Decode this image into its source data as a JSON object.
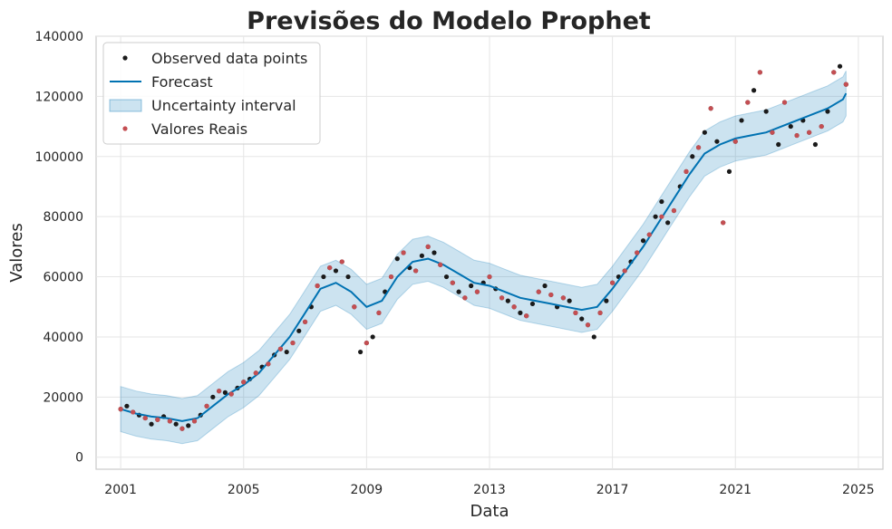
{
  "chart_data": {
    "type": "line",
    "title": "Previsões do Modelo Prophet",
    "xlabel": "Data",
    "ylabel": "Valores",
    "xlim": [
      2000.2,
      2025.8
    ],
    "ylim": [
      -4000,
      140000
    ],
    "x_ticks": [
      2001,
      2005,
      2009,
      2013,
      2017,
      2021,
      2025
    ],
    "x_tick_labels": [
      "2001",
      "2005",
      "2009",
      "2013",
      "2017",
      "2021",
      "2025"
    ],
    "y_ticks": [
      0,
      20000,
      40000,
      60000,
      80000,
      100000,
      120000,
      140000
    ],
    "y_tick_labels": [
      "0",
      "20000",
      "40000",
      "60000",
      "80000",
      "100000",
      "120000",
      "140000"
    ],
    "grid": true,
    "legend_position": "top-left",
    "legend": [
      "Observed data points",
      "Forecast",
      "Uncertainty interval",
      "Valores Reais"
    ],
    "colors": {
      "observed": "#1a1a1a",
      "forecast": "#0072B2",
      "uncertainty": "#0072B2",
      "actual": "#c44e52",
      "grid": "#e5e5e5",
      "spine": "#cccccc"
    },
    "uncertainty_halfwidth": 7500,
    "series": [
      {
        "name": "Forecast",
        "x": [
          2001.0,
          2001.5,
          2002.0,
          2002.5,
          2003.0,
          2003.5,
          2004.0,
          2004.5,
          2005.0,
          2005.5,
          2006.0,
          2006.5,
          2007.0,
          2007.5,
          2008.0,
          2008.5,
          2009.0,
          2009.5,
          2010.0,
          2010.5,
          2011.0,
          2011.5,
          2012.0,
          2012.5,
          2013.0,
          2013.5,
          2014.0,
          2014.5,
          2015.0,
          2015.5,
          2016.0,
          2016.5,
          2017.0,
          2017.5,
          2018.0,
          2018.5,
          2019.0,
          2019.5,
          2020.0,
          2020.5,
          2021.0,
          2021.5,
          2022.0,
          2022.5,
          2023.0,
          2023.5,
          2024.0,
          2024.5,
          2024.6
        ],
        "values": [
          16000,
          14500,
          13500,
          13000,
          12000,
          13000,
          17000,
          21000,
          24000,
          28000,
          34000,
          40000,
          48000,
          56000,
          58000,
          55000,
          50000,
          52000,
          60000,
          65000,
          66000,
          64000,
          61000,
          58000,
          57000,
          55000,
          53000,
          52000,
          51000,
          50000,
          49000,
          50000,
          56000,
          63000,
          70000,
          78000,
          86000,
          94000,
          101000,
          104000,
          106000,
          107000,
          108000,
          110000,
          112000,
          114000,
          116000,
          119000,
          121000
        ]
      },
      {
        "name": "Observed data points",
        "x": [
          2001.0,
          2001.2,
          2001.4,
          2001.6,
          2001.8,
          2002.0,
          2002.2,
          2002.4,
          2002.6,
          2002.8,
          2003.0,
          2003.2,
          2003.4,
          2003.6,
          2003.8,
          2004.0,
          2004.2,
          2004.4,
          2004.6,
          2004.8,
          2005.0,
          2005.2,
          2005.4,
          2005.6,
          2005.8,
          2006.0,
          2006.2,
          2006.4,
          2006.6,
          2006.8,
          2007.0,
          2007.2,
          2007.4,
          2007.6,
          2007.8,
          2008.0,
          2008.2,
          2008.4,
          2008.6,
          2008.8,
          2009.0,
          2009.2,
          2009.4,
          2009.6,
          2009.8,
          2010.0,
          2010.2,
          2010.4,
          2010.6,
          2010.8,
          2011.0,
          2011.2,
          2011.4,
          2011.6,
          2011.8,
          2012.0,
          2012.2,
          2012.4,
          2012.6,
          2012.8,
          2013.0,
          2013.2,
          2013.4,
          2013.6,
          2013.8,
          2014.0,
          2014.2,
          2014.4,
          2014.6,
          2014.8,
          2015.0,
          2015.2,
          2015.4,
          2015.6,
          2015.8,
          2016.0,
          2016.2,
          2016.4,
          2016.6,
          2016.8,
          2017.0,
          2017.2,
          2017.4,
          2017.6,
          2017.8,
          2018.0,
          2018.2,
          2018.4,
          2018.6,
          2018.8,
          2019.0,
          2019.2,
          2019.4,
          2019.6,
          2019.8,
          2020.0,
          2020.2,
          2020.4,
          2020.6,
          2020.8,
          2021.0,
          2021.2,
          2021.4,
          2021.6,
          2021.8,
          2022.0,
          2022.2,
          2022.4,
          2022.6,
          2022.8,
          2023.0,
          2023.2,
          2023.4,
          2023.6,
          2023.8,
          2024.0,
          2024.2,
          2024.4,
          2024.6
        ],
        "values": [
          16000,
          17000,
          15000,
          14000,
          13000,
          11000,
          12500,
          13500,
          12000,
          11000,
          9500,
          10500,
          12000,
          14000,
          17000,
          20000,
          22000,
          21500,
          21000,
          23000,
          25000,
          26000,
          28000,
          30000,
          31000,
          34000,
          36000,
          35000,
          38000,
          42000,
          45000,
          50000,
          57000,
          60000,
          63000,
          62000,
          65000,
          60000,
          50000,
          35000,
          38000,
          40000,
          48000,
          55000,
          60000,
          66000,
          68000,
          63000,
          62000,
          67000,
          70000,
          68000,
          64000,
          60000,
          58000,
          55000,
          53000,
          57000,
          55000,
          58000,
          60000,
          56000,
          53000,
          52000,
          50000,
          48000,
          47000,
          51000,
          55000,
          57000,
          54000,
          50000,
          53000,
          52000,
          48000,
          46000,
          44000,
          40000,
          48000,
          52000,
          58000,
          60000,
          62000,
          65000,
          68000,
          72000,
          74000,
          80000,
          85000,
          78000,
          82000,
          90000,
          95000,
          100000,
          103000,
          108000,
          116000,
          105000,
          78000,
          95000,
          105000,
          112000,
          118000,
          122000,
          128000,
          115000,
          108000,
          104000,
          118000,
          110000,
          107000,
          112000,
          108000,
          104000,
          110000,
          115000,
          128000,
          130000,
          124000
        ]
      },
      {
        "name": "Valores Reais",
        "x": [
          2001.0,
          2001.4,
          2001.8,
          2002.2,
          2002.6,
          2003.0,
          2003.4,
          2003.8,
          2004.2,
          2004.6,
          2005.0,
          2005.4,
          2005.8,
          2006.2,
          2006.6,
          2007.0,
          2007.4,
          2007.8,
          2008.2,
          2008.6,
          2009.0,
          2009.4,
          2009.8,
          2010.2,
          2010.6,
          2011.0,
          2011.4,
          2011.8,
          2012.2,
          2012.6,
          2013.0,
          2013.4,
          2013.8,
          2014.2,
          2014.6,
          2015.0,
          2015.4,
          2015.8,
          2016.2,
          2016.6,
          2017.0,
          2017.4,
          2017.8,
          2018.2,
          2018.6,
          2019.0,
          2019.4,
          2019.8,
          2020.2,
          2020.6,
          2021.0,
          2021.4,
          2021.8,
          2022.2,
          2022.6,
          2023.0,
          2023.4,
          2023.8,
          2024.2,
          2024.6
        ],
        "values": [
          16000,
          15000,
          13000,
          12500,
          12000,
          9500,
          12000,
          17000,
          22000,
          21000,
          25000,
          28000,
          31000,
          36000,
          38000,
          45000,
          57000,
          63000,
          65000,
          50000,
          38000,
          48000,
          60000,
          68000,
          62000,
          70000,
          64000,
          58000,
          53000,
          55000,
          60000,
          53000,
          50000,
          47000,
          55000,
          54000,
          53000,
          48000,
          44000,
          48000,
          58000,
          62000,
          68000,
          74000,
          80000,
          82000,
          95000,
          103000,
          116000,
          78000,
          105000,
          118000,
          128000,
          108000,
          118000,
          107000,
          108000,
          110000,
          128000,
          124000
        ]
      }
    ]
  }
}
